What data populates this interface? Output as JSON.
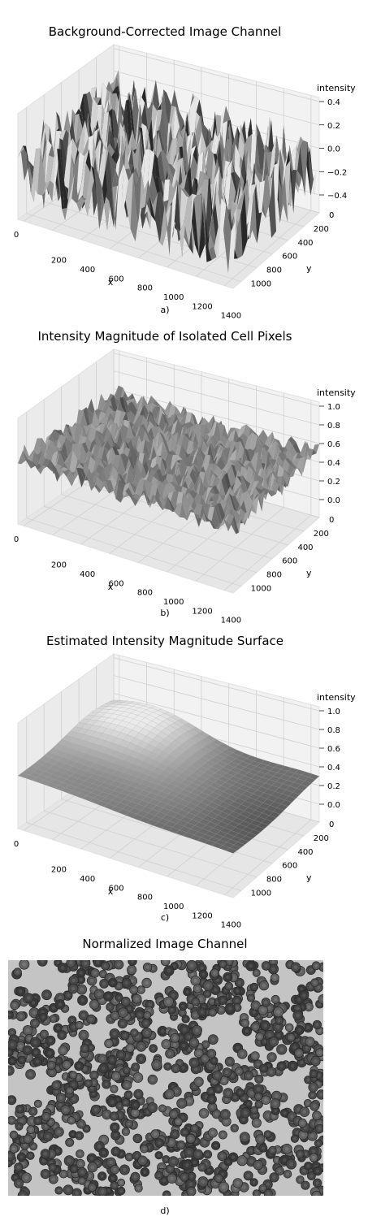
{
  "chart_data": [
    {
      "type": "surface3d",
      "panel": "a",
      "title": "Background-Corrected Image Channel",
      "caption": "a)",
      "xlabel": "x",
      "ylabel": "y",
      "zlabel": "intensity",
      "xticks": [
        "0",
        "200",
        "400",
        "600",
        "800",
        "1000",
        "1200",
        "1400"
      ],
      "yticks": [
        "0",
        "200",
        "400",
        "600",
        "800",
        "1000"
      ],
      "zticks": [
        "−0.4",
        "−0.2",
        "0.0",
        "0.2",
        "0.4"
      ],
      "xlim": [
        0,
        1500
      ],
      "ylim": [
        0,
        1100
      ],
      "zlim": [
        -0.45,
        0.45
      ],
      "surface": "noisy"
    },
    {
      "type": "surface3d",
      "panel": "b",
      "title": "Intensity Magnitude of Isolated Cell Pixels",
      "caption": "b)",
      "xlabel": "x",
      "ylabel": "y",
      "zlabel": "intensity",
      "xticks": [
        "0",
        "200",
        "400",
        "600",
        "800",
        "1000",
        "1200",
        "1400"
      ],
      "yticks": [
        "0",
        "200",
        "400",
        "600",
        "800",
        "1000"
      ],
      "zticks": [
        "0.0",
        "0.2",
        "0.4",
        "0.6",
        "0.8",
        "1.0"
      ],
      "xlim": [
        0,
        1500
      ],
      "ylim": [
        0,
        1100
      ],
      "zlim": [
        0,
        1
      ],
      "surface": "noisy"
    },
    {
      "type": "surface3d",
      "panel": "c",
      "title": "Estimated Intensity Magnitude Surface",
      "caption": "c)",
      "xlabel": "x",
      "ylabel": "y",
      "zlabel": "intensity",
      "xticks": [
        "0",
        "200",
        "400",
        "600",
        "800",
        "1000",
        "1200",
        "1400"
      ],
      "yticks": [
        "0",
        "200",
        "400",
        "600",
        "800",
        "1000"
      ],
      "zticks": [
        "0.0",
        "0.2",
        "0.4",
        "0.6",
        "0.8",
        "1.0"
      ],
      "xlim": [
        0,
        1500
      ],
      "ylim": [
        0,
        1100
      ],
      "zlim": [
        0,
        1
      ],
      "surface": "smooth"
    },
    {
      "type": "image",
      "panel": "d",
      "title": "Normalized Image Channel",
      "caption": "d)"
    }
  ]
}
